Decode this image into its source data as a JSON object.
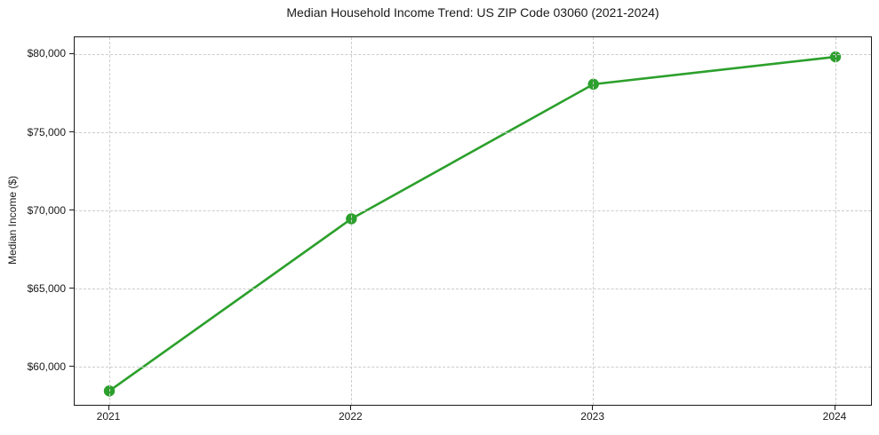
{
  "chart_data": {
    "type": "line",
    "title": "Median Household Income Trend: US ZIP Code 03060 (2021-2024)",
    "xlabel": "",
    "ylabel": "Median Income ($)",
    "categories": [
      "2021",
      "2022",
      "2023",
      "2024"
    ],
    "series": [
      {
        "name": "Median Household Income",
        "values": [
          58500,
          69500,
          78100,
          79850
        ]
      }
    ],
    "yticks": [
      {
        "value": 60000,
        "label": "$60,000"
      },
      {
        "value": 65000,
        "label": "$65,000"
      },
      {
        "value": 70000,
        "label": "$70,000"
      },
      {
        "value": 75000,
        "label": "$75,000"
      },
      {
        "value": 80000,
        "label": "$80,000"
      }
    ],
    "ylim": [
      57500,
      81100
    ],
    "grid": true,
    "grid_style": "dashed",
    "legend_position": "none",
    "line_color": "#2ca02c",
    "marker": "circle",
    "grid_color": "#cccccc",
    "text_color": "#1a1a1a",
    "background_color": "#ffffff"
  }
}
